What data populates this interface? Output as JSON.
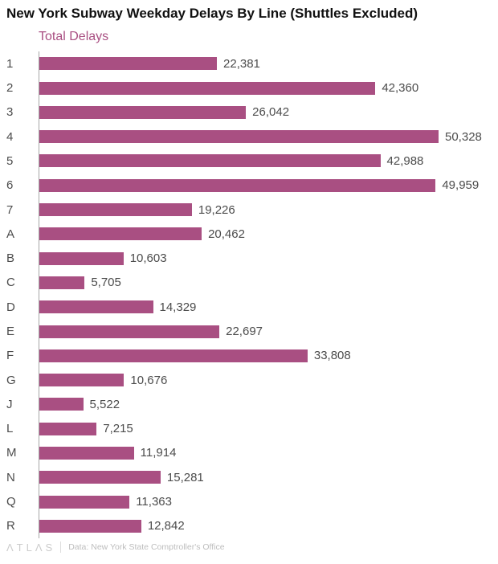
{
  "title": "New York Subway Weekday Delays By Line (Shuttles Excluded)",
  "legend": "Total Delays",
  "accent_color": "#a94f82",
  "footer": {
    "logo": "ΛTLΛS",
    "source": "Data: New York State Comptroller's Office"
  },
  "chart_data": {
    "type": "bar",
    "orientation": "horizontal",
    "title": "New York Subway Weekday Delays By Line (Shuttles Excluded)",
    "series_label": "Total Delays",
    "categories": [
      "1",
      "2",
      "3",
      "4",
      "5",
      "6",
      "7",
      "A",
      "B",
      "C",
      "D",
      "E",
      "F",
      "G",
      "J",
      "L",
      "M",
      "N",
      "Q",
      "R"
    ],
    "values": [
      22381,
      42360,
      26042,
      50328,
      42988,
      49959,
      19226,
      20462,
      10603,
      5705,
      14329,
      22697,
      33808,
      10676,
      5522,
      7215,
      11914,
      15281,
      11363,
      12842
    ],
    "value_labels": [
      "22,381",
      "42,360",
      "26,042",
      "50,328",
      "42,988",
      "49,959",
      "19,226",
      "20,462",
      "10,603",
      "5,705",
      "14,329",
      "22,697",
      "33,808",
      "10,676",
      "5,522",
      "7,215",
      "11,914",
      "15,281",
      "11,363",
      "12,842"
    ],
    "xlim": [
      0,
      50328
    ],
    "grid": false,
    "legend_position": "top-left"
  }
}
